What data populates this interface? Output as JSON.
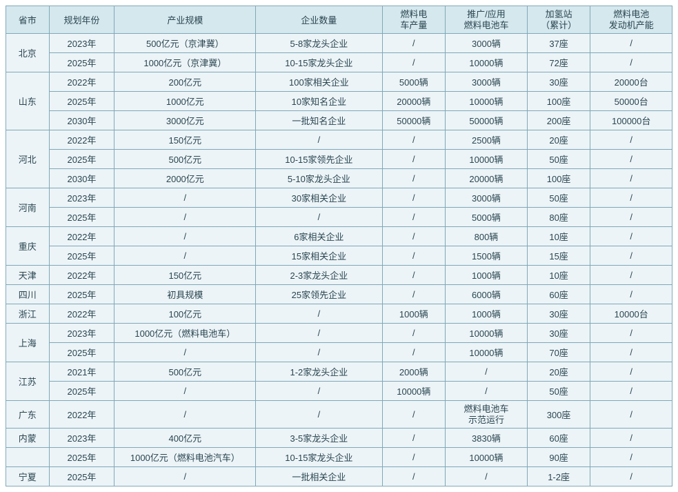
{
  "table": {
    "background_color": "#ecf4f7",
    "header_background": "#d5e8ee",
    "border_color": "#7fa8b8",
    "text_color": "#2a4550",
    "font_size": 13,
    "headers": {
      "province": "省市",
      "year": "规划年份",
      "scale": "产业规模",
      "companies": "企业数量",
      "production": "燃料电\n车产量",
      "promotion": "推广/应用\n燃料电池车",
      "stations": "加氢站\n（累计）",
      "engine": "燃料电池\n发动机产能"
    },
    "groups": [
      {
        "province": "北京",
        "rows": [
          {
            "year": "2023年",
            "scale": "500亿元（京津冀）",
            "companies": "5-8家龙头企业",
            "production": "/",
            "promotion": "3000辆",
            "stations": "37座",
            "engine": "/"
          },
          {
            "year": "2025年",
            "scale": "1000亿元（京津冀）",
            "companies": "10-15家龙头企业",
            "production": "/",
            "promotion": "10000辆",
            "stations": "72座",
            "engine": "/"
          }
        ]
      },
      {
        "province": "山东",
        "rows": [
          {
            "year": "2022年",
            "scale": "200亿元",
            "companies": "100家相关企业",
            "production": "5000辆",
            "promotion": "3000辆",
            "stations": "30座",
            "engine": "20000台"
          },
          {
            "year": "2025年",
            "scale": "1000亿元",
            "companies": "10家知名企业",
            "production": "20000辆",
            "promotion": "10000辆",
            "stations": "100座",
            "engine": "50000台"
          },
          {
            "year": "2030年",
            "scale": "3000亿元",
            "companies": "一批知名企业",
            "production": "50000辆",
            "promotion": "50000辆",
            "stations": "200座",
            "engine": "100000台"
          }
        ]
      },
      {
        "province": "河北",
        "rows": [
          {
            "year": "2022年",
            "scale": "150亿元",
            "companies": "/",
            "production": "/",
            "promotion": "2500辆",
            "stations": "20座",
            "engine": "/"
          },
          {
            "year": "2025年",
            "scale": "500亿元",
            "companies": "10-15家领先企业",
            "production": "/",
            "promotion": "10000辆",
            "stations": "50座",
            "engine": "/"
          },
          {
            "year": "2030年",
            "scale": "2000亿元",
            "companies": "5-10家龙头企业",
            "production": "/",
            "promotion": "20000辆",
            "stations": "100座",
            "engine": "/"
          }
        ]
      },
      {
        "province": "河南",
        "rows": [
          {
            "year": "2023年",
            "scale": "/",
            "companies": "30家相关企业",
            "production": "/",
            "promotion": "3000辆",
            "stations": "50座",
            "engine": "/"
          },
          {
            "year": "2025年",
            "scale": "/",
            "companies": "/",
            "production": "/",
            "promotion": "5000辆",
            "stations": "80座",
            "engine": "/"
          }
        ]
      },
      {
        "province": "重庆",
        "rows": [
          {
            "year": "2022年",
            "scale": "/",
            "companies": "6家相关企业",
            "production": "/",
            "promotion": "800辆",
            "stations": "10座",
            "engine": "/"
          },
          {
            "year": "2025年",
            "scale": "/",
            "companies": "15家相关企业",
            "production": "/",
            "promotion": "1500辆",
            "stations": "15座",
            "engine": "/"
          }
        ]
      },
      {
        "province": "天津",
        "rows": [
          {
            "year": "2022年",
            "scale": "150亿元",
            "companies": "2-3家龙头企业",
            "production": "/",
            "promotion": "1000辆",
            "stations": "10座",
            "engine": "/"
          }
        ]
      },
      {
        "province": "四川",
        "rows": [
          {
            "year": "2025年",
            "scale": "初具规模",
            "companies": "25家领先企业",
            "production": "/",
            "promotion": "6000辆",
            "stations": "60座",
            "engine": "/"
          }
        ]
      },
      {
        "province": "浙江",
        "rows": [
          {
            "year": "2022年",
            "scale": "100亿元",
            "companies": "/",
            "production": "1000辆",
            "promotion": "1000辆",
            "stations": "30座",
            "engine": "10000台"
          }
        ]
      },
      {
        "province": "上海",
        "rows": [
          {
            "year": "2023年",
            "scale": "1000亿元（燃料电池车）",
            "companies": "/",
            "production": "/",
            "promotion": "10000辆",
            "stations": "30座",
            "engine": "/"
          },
          {
            "year": "2025年",
            "scale": "/",
            "companies": "/",
            "production": "/",
            "promotion": "10000辆",
            "stations": "70座",
            "engine": "/"
          }
        ]
      },
      {
        "province": "江苏",
        "rows": [
          {
            "year": "2021年",
            "scale": "500亿元",
            "companies": "1-2家龙头企业",
            "production": "2000辆",
            "promotion": "/",
            "stations": "20座",
            "engine": "/"
          },
          {
            "year": "2025年",
            "scale": "/",
            "companies": "/",
            "production": "10000辆",
            "promotion": "/",
            "stations": "50座",
            "engine": "/"
          }
        ]
      },
      {
        "province": "广东",
        "rows": [
          {
            "year": "2022年",
            "scale": "/",
            "companies": "/",
            "production": "/",
            "promotion": "燃料电池车\n示范运行",
            "stations": "300座",
            "engine": "/"
          }
        ]
      },
      {
        "province": "内蒙",
        "rows": [
          {
            "year": "2023年",
            "scale": "400亿元",
            "companies": "3-5家龙头企业",
            "production": "/",
            "promotion": "3830辆",
            "stations": "60座",
            "engine": "/"
          }
        ]
      },
      {
        "province": "",
        "rows": [
          {
            "year": "2025年",
            "scale": "1000亿元（燃料电池汽车）",
            "companies": "10-15家龙头企业",
            "production": "/",
            "promotion": "10000辆",
            "stations": "90座",
            "engine": "/"
          }
        ]
      },
      {
        "province": "宁夏",
        "rows": [
          {
            "year": "2025年",
            "scale": "/",
            "companies": "一批相关企业",
            "production": "/",
            "promotion": "/",
            "stations": "1-2座",
            "engine": "/"
          }
        ]
      }
    ]
  }
}
